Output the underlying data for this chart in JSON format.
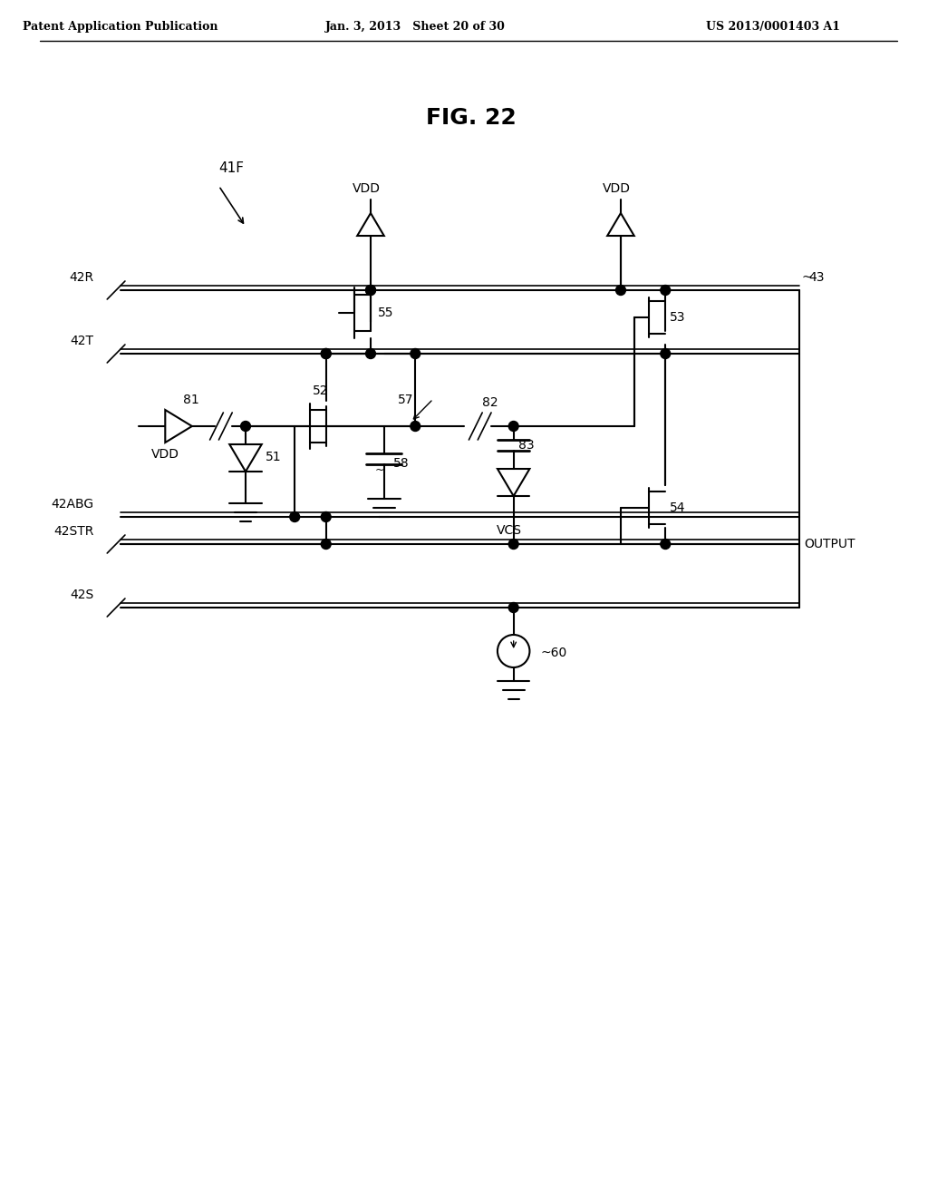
{
  "title": "FIG. 22",
  "header_left": "Patent Application Publication",
  "header_center": "Jan. 3, 2013   Sheet 20 of 30",
  "header_right": "US 2013/0001403 A1",
  "background": "#ffffff",
  "label_41F": "41F",
  "label_42R": "42R",
  "label_42T": "42T",
  "label_42ABG": "42ABG",
  "label_42STR": "42STR",
  "label_42S": "42S",
  "label_VDD": "VDD",
  "label_VCS": "VCS",
  "label_OUTPUT": "OUTPUT",
  "label_43": "43",
  "label_51": "51",
  "label_52": "52",
  "label_53": "53",
  "label_54": "54",
  "label_55": "55",
  "label_57": "57",
  "label_58": "58",
  "label_60": "60",
  "label_81": "81",
  "label_82": "82",
  "label_83": "83"
}
